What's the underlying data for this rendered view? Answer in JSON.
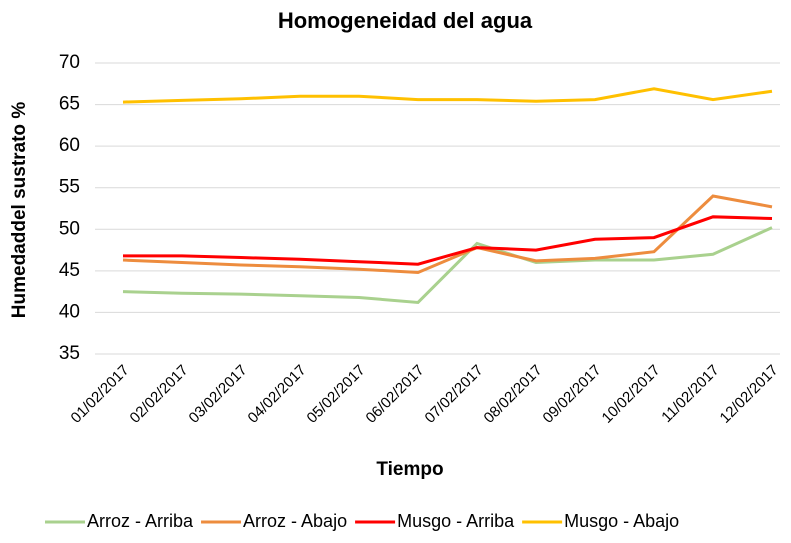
{
  "chart_data": {
    "type": "line",
    "title": "Homogeneidad del agua",
    "x_label": "Tiempo",
    "y_label": "Humedaddel sustrato %",
    "categories": [
      "01/02/2017",
      "02/02/2017",
      "03/02/2017",
      "04/02/2017",
      "05/02/2017",
      "06/02/2017",
      "07/02/2017",
      "08/02/2017",
      "09/02/2017",
      "10/02/2017",
      "11/02/2017",
      "12/02/2017"
    ],
    "series": [
      {
        "name": "Arroz - Arriba",
        "color": "#a9d18e",
        "values": [
          42.5,
          42.3,
          42.2,
          42.0,
          41.8,
          41.2,
          48.3,
          46.0,
          46.3,
          46.3,
          47.0,
          50.2
        ]
      },
      {
        "name": "Arroz - Abajo",
        "color": "#ed8c3e",
        "values": [
          46.3,
          46.0,
          45.7,
          45.5,
          45.2,
          44.8,
          47.8,
          46.2,
          46.5,
          47.3,
          54.0,
          52.7
        ]
      },
      {
        "name": "Musgo - Arriba",
        "color": "#ff0000",
        "values": [
          46.8,
          46.8,
          46.6,
          46.4,
          46.1,
          45.8,
          47.8,
          47.5,
          48.8,
          49.0,
          51.5,
          51.3
        ]
      },
      {
        "name": "Musgo - Abajo",
        "color": "#ffc000",
        "values": [
          65.3,
          65.5,
          65.7,
          66.0,
          66.0,
          65.6,
          65.6,
          65.4,
          65.6,
          66.9,
          65.6,
          66.6
        ]
      }
    ],
    "ylim": [
      35,
      70
    ],
    "yticks": [
      35,
      40,
      45,
      50,
      55,
      60,
      65,
      70
    ],
    "grid": true,
    "legend": "bottom"
  }
}
